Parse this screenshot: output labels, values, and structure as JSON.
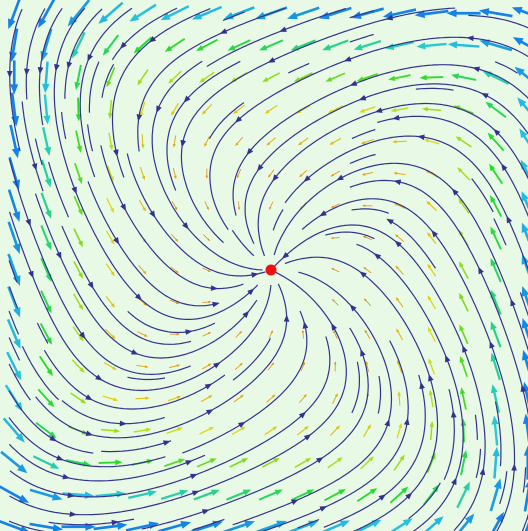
{
  "chart_data": {
    "type": "streamplot",
    "background": "#e8fae6",
    "line_color": "#33338f",
    "center_color": "#ee1111"
  }
}
